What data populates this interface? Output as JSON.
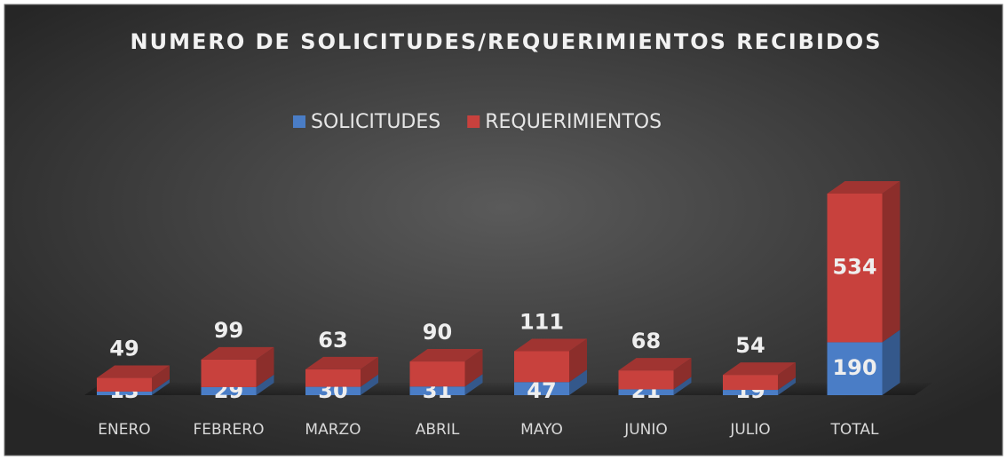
{
  "chart_data": {
    "type": "bar3d_stacked",
    "title": "NUMERO DE SOLICITUDES/REQUERIMIENTOS RECIBIDOS",
    "categories": [
      "ENERO",
      "FEBRERO",
      "MARZO",
      "ABRIL",
      "MAYO",
      "JUNIO",
      "JULIO",
      "TOTAL"
    ],
    "series": [
      {
        "name": "SOLICITUDES",
        "color": "#4a7dc6",
        "values": [
          13,
          29,
          30,
          31,
          47,
          21,
          19,
          190
        ]
      },
      {
        "name": "REQUERIMIENTOS",
        "color": "#c8413d",
        "values": [
          49,
          99,
          63,
          90,
          111,
          68,
          54,
          534
        ]
      }
    ]
  }
}
